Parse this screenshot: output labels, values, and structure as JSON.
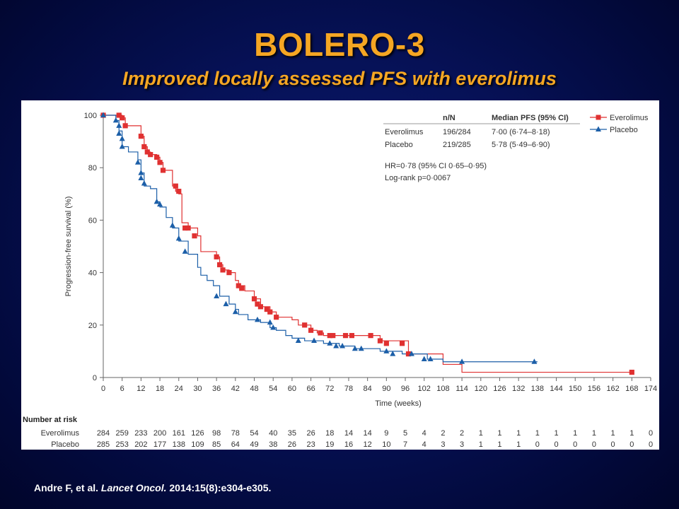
{
  "title": "BOLERO-3",
  "subtitle": "Improved locally assessed PFS with everolimus",
  "citation": {
    "authors": "Andre F, et al. ",
    "journal": "Lancet Oncol.",
    "details": " 2014:15(8):e304-e305."
  },
  "colors": {
    "everolimus": "#e03131",
    "placebo": "#1c5fa8",
    "title": "#f5a623"
  },
  "chart_data": {
    "type": "line",
    "subtype": "kaplan-meier step",
    "xlabel": "Time (weeks)",
    "ylabel": "Progression-free survival (%)",
    "xlim": [
      0,
      174
    ],
    "ylim": [
      0,
      100
    ],
    "x_ticks": [
      0,
      6,
      12,
      18,
      24,
      30,
      36,
      42,
      48,
      54,
      60,
      66,
      72,
      78,
      84,
      90,
      96,
      102,
      108,
      114,
      120,
      126,
      132,
      138,
      144,
      150,
      156,
      162,
      168,
      174
    ],
    "y_ticks": [
      0,
      20,
      40,
      60,
      80,
      100
    ],
    "legend": {
      "placement": "top-right",
      "entries": [
        "Everolimus",
        "Placebo"
      ]
    },
    "stats_table": {
      "headers": [
        "",
        "n/N",
        "Median PFS (95% CI)"
      ],
      "rows": [
        [
          "Everolimus",
          "196/284",
          "7·00 (6·74–8·18)"
        ],
        [
          "Placebo",
          "219/285",
          "5·78 (5·49–6·90)"
        ]
      ],
      "hr_text": "HR=0·78 (95% CI 0·65–0·95)",
      "logrank_text": "Log-rank p=0·0067"
    },
    "series": [
      {
        "name": "Everolimus",
        "x": [
          0,
          5,
          6,
          7,
          12,
          13,
          14,
          15,
          17,
          18,
          19,
          22,
          23,
          24,
          25,
          27,
          30,
          31,
          36,
          37,
          38,
          40,
          42,
          43,
          45,
          48,
          50,
          53,
          55,
          60,
          62,
          66,
          68,
          70,
          72,
          78,
          88,
          97,
          108,
          114,
          168
        ],
        "y": [
          100,
          100,
          99,
          96,
          92,
          88,
          86,
          85,
          84,
          82,
          79,
          73,
          71,
          70,
          59,
          57,
          54,
          48,
          46,
          43,
          41,
          40,
          37,
          35,
          33,
          30,
          27,
          25,
          23,
          22,
          20,
          18,
          17,
          16,
          16,
          16,
          14,
          9,
          5,
          2,
          2
        ],
        "censor_x": [
          0,
          5,
          6,
          7,
          12,
          13,
          14,
          15,
          17,
          18,
          19,
          23,
          24,
          26,
          27,
          29,
          36,
          37,
          38,
          40,
          43,
          44,
          48,
          49,
          50,
          52,
          53,
          55,
          64,
          66,
          69,
          72,
          73,
          77,
          79,
          85,
          88,
          90,
          95,
          97,
          168
        ],
        "censor_y": [
          100,
          100,
          99,
          96,
          92,
          88,
          86,
          85,
          84,
          82,
          79,
          73,
          71,
          57,
          57,
          54,
          46,
          43,
          41,
          40,
          35,
          34,
          30,
          28,
          27,
          26,
          25,
          23,
          20,
          18,
          17,
          16,
          16,
          16,
          16,
          16,
          14,
          13,
          13,
          9,
          2
        ]
      },
      {
        "name": "Placebo",
        "x": [
          0,
          4,
          5,
          6,
          8,
          11,
          12,
          13,
          15,
          17,
          18,
          20,
          22,
          24,
          27,
          30,
          31,
          33,
          35,
          37,
          40,
          42,
          43,
          46,
          50,
          53,
          55,
          58,
          60,
          64,
          70,
          75,
          80,
          88,
          95,
          103,
          108,
          138
        ],
        "y": [
          100,
          98,
          94,
          88,
          86,
          83,
          78,
          73,
          72,
          67,
          65,
          61,
          57,
          52,
          47,
          42,
          39,
          37,
          35,
          31,
          28,
          26,
          24,
          22,
          21,
          19,
          18,
          16,
          15,
          14,
          13,
          12,
          11,
          10,
          9,
          7,
          6,
          6
        ],
        "censor_x": [
          0,
          4,
          5,
          5,
          6,
          6,
          11,
          12,
          12,
          13,
          17,
          18,
          22,
          24,
          26,
          36,
          39,
          42,
          49,
          53,
          54,
          62,
          67,
          72,
          74,
          76,
          80,
          82,
          90,
          92,
          98,
          102,
          104,
          114,
          137
        ],
        "censor_y": [
          100,
          98,
          96,
          93,
          91,
          88,
          82,
          78,
          76,
          74,
          67,
          66,
          58,
          53,
          48,
          31,
          28,
          25,
          22,
          21,
          19,
          14,
          14,
          13,
          12,
          12,
          11,
          11,
          10,
          9,
          9,
          7,
          7,
          6,
          6
        ]
      }
    ],
    "risk_table": {
      "title": "Number at risk",
      "rows": [
        {
          "name": "Everolimus",
          "values": [
            284,
            259,
            233,
            200,
            161,
            126,
            98,
            78,
            54,
            40,
            35,
            26,
            18,
            14,
            14,
            9,
            5,
            4,
            2,
            2,
            1,
            1,
            1,
            1,
            1,
            1,
            1,
            1,
            1,
            0
          ]
        },
        {
          "name": "Placebo",
          "values": [
            285,
            253,
            202,
            177,
            138,
            109,
            85,
            64,
            49,
            38,
            26,
            23,
            19,
            16,
            12,
            10,
            7,
            4,
            3,
            3,
            1,
            1,
            1,
            0,
            0,
            0,
            0,
            0,
            0,
            0
          ]
        }
      ]
    }
  }
}
